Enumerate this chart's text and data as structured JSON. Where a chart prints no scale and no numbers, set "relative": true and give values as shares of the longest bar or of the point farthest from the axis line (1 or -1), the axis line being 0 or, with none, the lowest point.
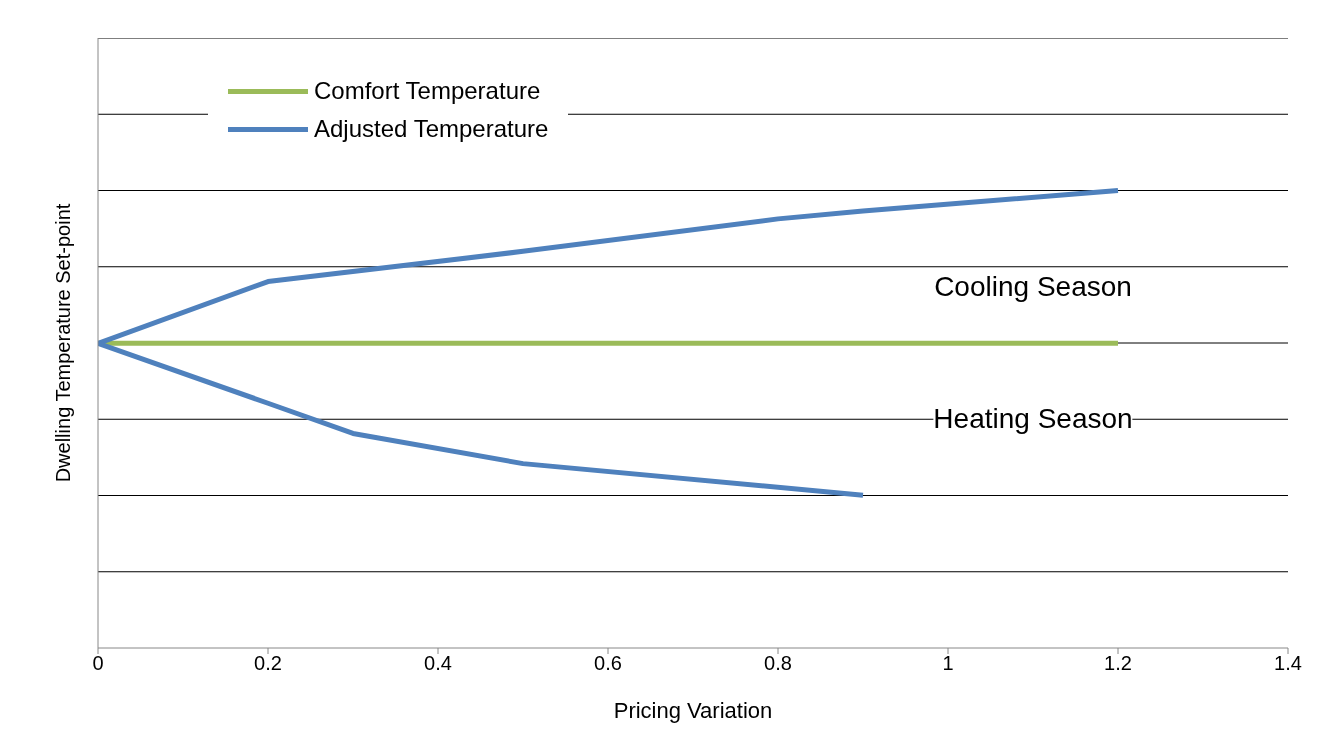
{
  "chart_data": {
    "type": "line",
    "relative": true,
    "xlabel": "Pricing Variation",
    "ylabel": "Dwelling Temperature Set-point",
    "xlim": [
      0,
      1.4
    ],
    "xticks": [
      0,
      0.2,
      0.4,
      0.6,
      0.8,
      1,
      1.2,
      1.4
    ],
    "grid": "y",
    "legend": "top left",
    "marker": "none",
    "line_style": "solid",
    "annotations": [
      "Cooling Season",
      "Heating Season"
    ],
    "series": [
      {
        "name": "Comfort Temperature",
        "color": "#9bbb59",
        "x": [
          0,
          1.2
        ],
        "values": [
          0.666,
          0.666
        ]
      },
      {
        "name": "Adjusted Temperature",
        "color": "#4f81bd",
        "x": [
          0,
          0.2,
          0.5,
          0.8,
          0.9,
          1.2
        ],
        "values": [
          0.666,
          0.801,
          0.867,
          0.938,
          0.955,
          1
        ]
      },
      {
        "color": "#4f81bd",
        "x": [
          0,
          0.2,
          0.3,
          0.5,
          0.9
        ],
        "values": [
          0.666,
          0.535,
          0.469,
          0.403,
          0.334
        ]
      }
    ]
  }
}
